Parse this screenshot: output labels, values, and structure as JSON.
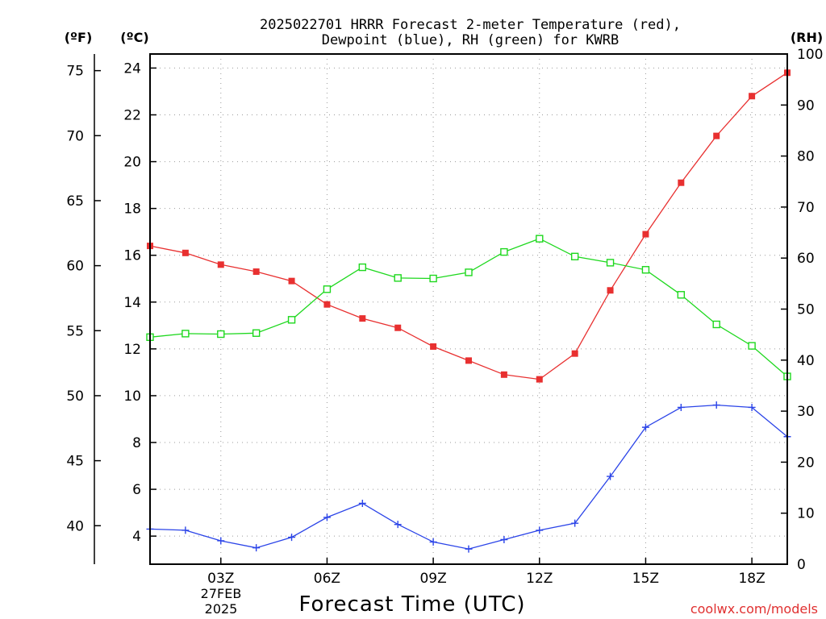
{
  "chart_data": {
    "type": "line",
    "title_line1": "2025022701 HRRR Forecast 2-meter Temperature (red),",
    "title_line2": "Dewpoint (blue), RH (green) for KWRB",
    "xlabel": "Forecast Time (UTC)",
    "watermark": "coolwx.com/models",
    "x": [
      1,
      2,
      3,
      4,
      5,
      6,
      7,
      8,
      9,
      10,
      11,
      12,
      13,
      14,
      15,
      16,
      17,
      18,
      19
    ],
    "x_range": [
      1,
      19
    ],
    "x_ticks": [
      {
        "x": 3,
        "label": "03Z"
      },
      {
        "x": 6,
        "label": "06Z"
      },
      {
        "x": 9,
        "label": "09Z"
      },
      {
        "x": 12,
        "label": "12Z"
      },
      {
        "x": 15,
        "label": "15Z"
      },
      {
        "x": 18,
        "label": "18Z"
      }
    ],
    "date_label_line1": "27FEB",
    "date_label_line2": "2025",
    "left_axis_f": {
      "unit_label": "(ºF)",
      "ticks": [
        40,
        45,
        50,
        55,
        60,
        65,
        70,
        75
      ]
    },
    "left_axis_c": {
      "unit_label": "(ºC)",
      "range": [
        2.8,
        24.6
      ],
      "ticks": [
        4,
        6,
        8,
        10,
        12,
        14,
        16,
        18,
        20,
        22,
        24
      ]
    },
    "right_axis_rh": {
      "unit_label": "(RH)",
      "range": [
        0,
        100
      ],
      "ticks": [
        0,
        10,
        20,
        30,
        40,
        50,
        60,
        70,
        80,
        90,
        100
      ]
    },
    "grid": true,
    "series": [
      {
        "color": "#e83030",
        "axis": "left",
        "marker": "filled-square",
        "values": [
          16.4,
          16.1,
          15.6,
          15.3,
          14.9,
          13.9,
          13.3,
          12.9,
          12.1,
          11.5,
          10.9,
          10.7,
          11.8,
          14.5,
          16.9,
          19.1,
          21.1,
          22.8,
          23.8
        ]
      },
      {
        "color": "#2b44e8",
        "axis": "left",
        "marker": "plus",
        "values": [
          4.3,
          4.25,
          3.8,
          3.5,
          3.95,
          4.8,
          5.4,
          4.5,
          3.75,
          3.45,
          3.85,
          4.25,
          4.55,
          6.55,
          8.65,
          9.5,
          9.6,
          9.5,
          8.25
        ]
      },
      {
        "color": "#1ed81e",
        "axis": "right",
        "marker": "open-square",
        "values": [
          44.5,
          45.2,
          45.1,
          45.3,
          47.9,
          53.9,
          58.2,
          56.1,
          56.0,
          57.2,
          61.2,
          63.8,
          60.3,
          59.1,
          57.7,
          52.8,
          47.0,
          42.8,
          36.8
        ]
      }
    ]
  }
}
